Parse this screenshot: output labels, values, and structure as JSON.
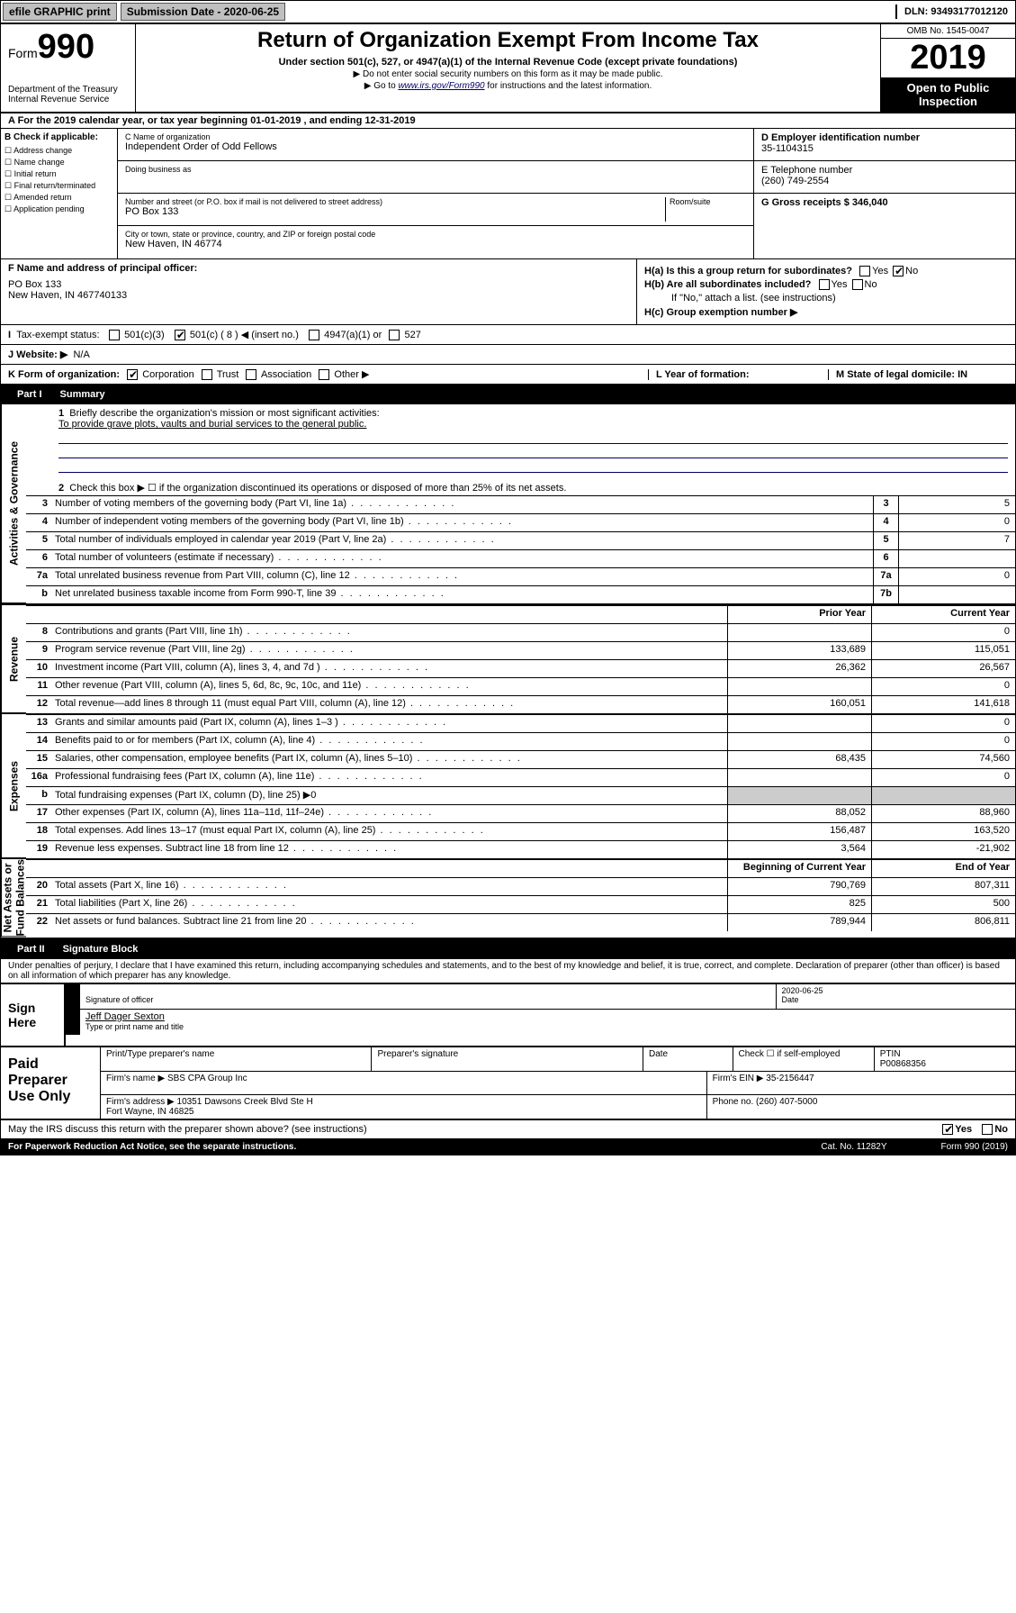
{
  "topbar": {
    "efile": "efile GRAPHIC print",
    "subdate_label": "Submission Date - 2020-06-25",
    "dln": "DLN: 93493177012120"
  },
  "header": {
    "form_label": "Form",
    "form_number": "990",
    "dept": "Department of the Treasury\nInternal Revenue Service",
    "title": "Return of Organization Exempt From Income Tax",
    "sub1": "Under section 501(c), 527, or 4947(a)(1) of the Internal Revenue Code (except private foundations)",
    "sub2": "▶ Do not enter social security numbers on this form as it may be made public.",
    "sub3_pre": "▶ Go to ",
    "sub3_link": "www.irs.gov/Form990",
    "sub3_post": " for instructions and the latest information.",
    "omb": "OMB No. 1545-0047",
    "year": "2019",
    "open": "Open to Public\nInspection"
  },
  "row_a": "A For the 2019 calendar year, or tax year beginning 01-01-2019   , and ending 12-31-2019",
  "box_b": {
    "label": "B Check if applicable:",
    "opts": [
      "Address change",
      "Name change",
      "Initial return",
      "Final return/terminated",
      "Amended return",
      "Application pending"
    ]
  },
  "box_c": {
    "name_label": "C Name of organization",
    "name": "Independent Order of Odd Fellows",
    "dba_label": "Doing business as",
    "addr_label": "Number and street (or P.O. box if mail is not delivered to street address)",
    "room_label": "Room/suite",
    "addr": "PO Box 133",
    "city_label": "City or town, state or province, country, and ZIP or foreign postal code",
    "city": "New Haven, IN  46774"
  },
  "box_d": {
    "ein_label": "D Employer identification number",
    "ein": "35-1104315",
    "phone_label": "E Telephone number",
    "phone": "(260) 749-2554",
    "gross_label": "G Gross receipts $ 346,040"
  },
  "box_f": {
    "label": "F  Name and address of principal officer:",
    "addr": "PO Box 133\nNew Haven, IN  467740133"
  },
  "box_h": {
    "a": "H(a)  Is this a group return for subordinates?",
    "b": "H(b)  Are all subordinates included?",
    "b2": "If \"No,\" attach a list. (see instructions)",
    "c": "H(c)  Group exemption number ▶"
  },
  "row_i": {
    "label": "Tax-exempt status:",
    "opts": [
      "501(c)(3)",
      "501(c) ( 8 ) ◀ (insert no.)",
      "4947(a)(1) or",
      "527"
    ],
    "checked_idx": 1
  },
  "row_j": {
    "label": "J  Website: ▶",
    "val": "N/A"
  },
  "row_k": {
    "label": "K Form of organization:",
    "opts": [
      "Corporation",
      "Trust",
      "Association",
      "Other ▶"
    ],
    "checked_idx": 0,
    "l": "L Year of formation:",
    "m": "M State of legal domicile: IN"
  },
  "part1": {
    "label": "Part I",
    "title": "Summary"
  },
  "summary": {
    "q1": "Briefly describe the organization's mission or most significant activities:",
    "mission": "To provide grave plots, vaults and burial services to the general public.",
    "q2": "Check this box ▶ ☐  if the organization discontinued its operations or disposed of more than 25% of its net assets.",
    "rows_gov": [
      {
        "n": "3",
        "d": "Number of voting members of the governing body (Part VI, line 1a)",
        "cell": "3",
        "val": "5"
      },
      {
        "n": "4",
        "d": "Number of independent voting members of the governing body (Part VI, line 1b)",
        "cell": "4",
        "val": "0"
      },
      {
        "n": "5",
        "d": "Total number of individuals employed in calendar year 2019 (Part V, line 2a)",
        "cell": "5",
        "val": "7"
      },
      {
        "n": "6",
        "d": "Total number of volunteers (estimate if necessary)",
        "cell": "6",
        "val": ""
      },
      {
        "n": "7a",
        "d": "Total unrelated business revenue from Part VIII, column (C), line 12",
        "cell": "7a",
        "val": "0"
      },
      {
        "n": "b",
        "d": "Net unrelated business taxable income from Form 990-T, line 39",
        "cell": "7b",
        "val": ""
      }
    ],
    "col_headers": {
      "prior": "Prior Year",
      "current": "Current Year"
    },
    "rows_rev": [
      {
        "n": "8",
        "d": "Contributions and grants (Part VIII, line 1h)",
        "p": "",
        "c": "0"
      },
      {
        "n": "9",
        "d": "Program service revenue (Part VIII, line 2g)",
        "p": "133,689",
        "c": "115,051"
      },
      {
        "n": "10",
        "d": "Investment income (Part VIII, column (A), lines 3, 4, and 7d )",
        "p": "26,362",
        "c": "26,567"
      },
      {
        "n": "11",
        "d": "Other revenue (Part VIII, column (A), lines 5, 6d, 8c, 9c, 10c, and 11e)",
        "p": "",
        "c": "0"
      },
      {
        "n": "12",
        "d": "Total revenue—add lines 8 through 11 (must equal Part VIII, column (A), line 12)",
        "p": "160,051",
        "c": "141,618"
      }
    ],
    "rows_exp": [
      {
        "n": "13",
        "d": "Grants and similar amounts paid (Part IX, column (A), lines 1–3 )",
        "p": "",
        "c": "0"
      },
      {
        "n": "14",
        "d": "Benefits paid to or for members (Part IX, column (A), line 4)",
        "p": "",
        "c": "0"
      },
      {
        "n": "15",
        "d": "Salaries, other compensation, employee benefits (Part IX, column (A), lines 5–10)",
        "p": "68,435",
        "c": "74,560"
      },
      {
        "n": "16a",
        "d": "Professional fundraising fees (Part IX, column (A), line 11e)",
        "p": "",
        "c": "0"
      },
      {
        "n": "b",
        "d": "Total fundraising expenses (Part IX, column (D), line 25) ▶0",
        "single": true
      },
      {
        "n": "17",
        "d": "Other expenses (Part IX, column (A), lines 11a–11d, 11f–24e)",
        "p": "88,052",
        "c": "88,960"
      },
      {
        "n": "18",
        "d": "Total expenses. Add lines 13–17 (must equal Part IX, column (A), line 25)",
        "p": "156,487",
        "c": "163,520"
      },
      {
        "n": "19",
        "d": "Revenue less expenses. Subtract line 18 from line 12",
        "p": "3,564",
        "c": "-21,902"
      }
    ],
    "col_headers2": {
      "begin": "Beginning of Current Year",
      "end": "End of Year"
    },
    "rows_net": [
      {
        "n": "20",
        "d": "Total assets (Part X, line 16)",
        "p": "790,769",
        "c": "807,311"
      },
      {
        "n": "21",
        "d": "Total liabilities (Part X, line 26)",
        "p": "825",
        "c": "500"
      },
      {
        "n": "22",
        "d": "Net assets or fund balances. Subtract line 21 from line 20",
        "p": "789,944",
        "c": "806,811"
      }
    ]
  },
  "vlabels": {
    "gov": "Activities & Governance",
    "rev": "Revenue",
    "exp": "Expenses",
    "net": "Net Assets or\nFund Balances"
  },
  "part2": {
    "label": "Part II",
    "title": "Signature Block"
  },
  "sig": {
    "perjury": "Under penalties of perjury, I declare that I have examined this return, including accompanying schedules and statements, and to the best of my knowledge and belief, it is true, correct, and complete. Declaration of preparer (other than officer) is based on all information of which preparer has any knowledge.",
    "sign_here": "Sign\nHere",
    "sig_officer": "Signature of officer",
    "date_label": "Date",
    "sig_date": "2020-06-25",
    "name": "Jeff Dager Sexton",
    "name_label": "Type or print name and title"
  },
  "prep": {
    "label": "Paid\nPreparer\nUse Only",
    "r1": {
      "c1": "Print/Type preparer's name",
      "c2": "Preparer's signature",
      "c3": "Date",
      "c4_1": "Check ☐ if self-employed",
      "c5_1": "PTIN",
      "c5_2": "P00868356"
    },
    "r2": {
      "l": "Firm's name    ▶ SBS CPA Group Inc",
      "r": "Firm's EIN ▶ 35-2156447"
    },
    "r3": {
      "l": "Firm's address ▶ 10351 Dawsons Creek Blvd Ste H\n                      Fort Wayne, IN  46825",
      "r": "Phone no. (260) 407-5000"
    }
  },
  "discuss": "May the IRS discuss this return with the preparer shown above? (see instructions)",
  "footer": {
    "l": "For Paperwork Reduction Act Notice, see the separate instructions.",
    "c": "Cat. No. 11282Y",
    "r": "Form 990 (2019)"
  }
}
